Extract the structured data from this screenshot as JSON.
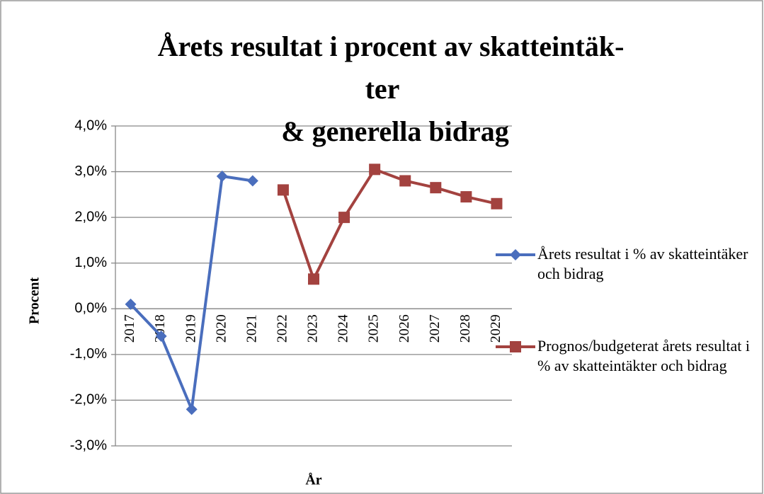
{
  "chart_data": {
    "type": "line",
    "title": [
      "Årets resultat i procent av skatteintäk-",
      "ter",
      "& generella bidrag"
    ],
    "x_label": "År",
    "y_label": "Procent",
    "categories": [
      "2017",
      "2018",
      "2019",
      "2020",
      "2021",
      "2022",
      "2023",
      "2024",
      "2025",
      "2026",
      "2027",
      "2028",
      "2029"
    ],
    "series": [
      {
        "name": "Årets resultat i % av skatteintäker och bidrag",
        "color": "#4a6ebd",
        "marker": "diamond",
        "values": [
          0.1,
          -0.6,
          -2.2,
          2.9,
          2.8,
          null,
          null,
          null,
          null,
          null,
          null,
          null,
          null
        ]
      },
      {
        "name": "Prognos/budgeterat årets resultat i % av skatteintäkter och bidrag",
        "color": "#a3423f",
        "marker": "square",
        "values": [
          null,
          null,
          null,
          null,
          null,
          2.6,
          0.65,
          2.0,
          3.05,
          2.8,
          2.65,
          2.45,
          2.3
        ]
      }
    ],
    "ylim": [
      -3,
      4
    ],
    "yticks": [
      {
        "value": -3,
        "label": "-3,0%"
      },
      {
        "value": -2,
        "label": "-2,0%"
      },
      {
        "value": -1,
        "label": "-1,0%"
      },
      {
        "value": 0,
        "label": "0,0%"
      },
      {
        "value": 1,
        "label": "1,0%"
      },
      {
        "value": 2,
        "label": "2,0%"
      },
      {
        "value": 3,
        "label": "3,0%"
      },
      {
        "value": 4,
        "label": "4,0%"
      }
    ],
    "grid": true,
    "legend": "right"
  }
}
